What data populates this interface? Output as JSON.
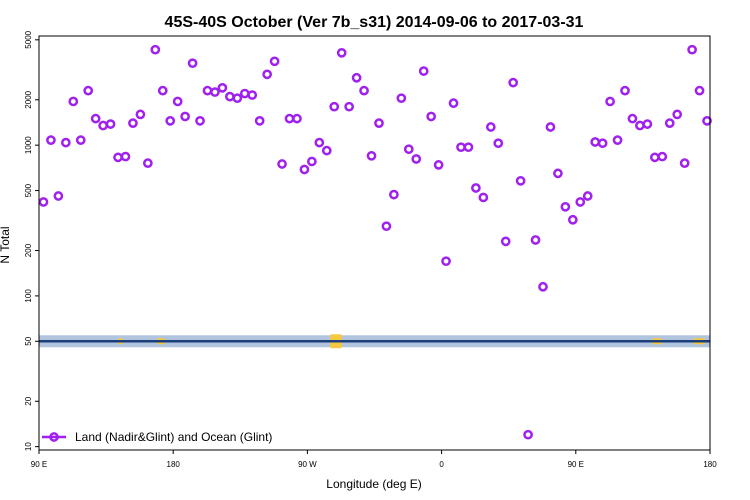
{
  "chart_data": {
    "type": "scatter",
    "title": "45S-40S October (Ver 7b_s31)   2014-09-06 to 2017-03-31",
    "xlabel": "Longitude (deg E)",
    "ylabel": "N Total",
    "x_ticks": [
      {
        "value": 90,
        "label": "90 E"
      },
      {
        "value": 180,
        "label": "180"
      },
      {
        "value": 270,
        "label": "90 W"
      },
      {
        "value": 360,
        "label": "0"
      },
      {
        "value": 450,
        "label": "90 E"
      },
      {
        "value": 540,
        "label": "180"
      }
    ],
    "y_ticks": [
      10,
      20,
      50,
      100,
      200,
      500,
      1000,
      2000,
      5000
    ],
    "y_scale": "log",
    "xlim": [
      90,
      540
    ],
    "ylim": [
      9.5,
      5300
    ],
    "reference_line_y": 50,
    "grid": false,
    "legend_position": "bottom-left",
    "series": [
      {
        "name": "Land (Nadir&Glint) and Ocean (Glint)",
        "color": "#a020f0",
        "marker": "open-circle",
        "x": [
          93,
          98,
          103,
          108,
          113,
          118,
          123,
          128,
          133,
          138,
          143,
          148,
          153,
          158,
          163,
          168,
          173,
          178,
          183,
          188,
          193,
          198,
          203,
          208,
          213,
          218,
          223,
          228,
          233,
          238,
          243,
          248,
          253,
          258,
          263,
          268,
          273,
          278,
          283,
          288,
          293,
          298,
          303,
          308,
          313,
          318,
          323,
          328,
          333,
          338,
          343,
          348,
          353,
          358,
          363,
          368,
          373,
          378,
          383,
          388,
          393,
          398,
          403,
          408,
          413,
          418,
          423,
          428,
          433,
          438,
          443,
          448,
          453,
          458,
          463,
          468,
          473,
          478,
          483,
          488,
          493,
          498,
          503,
          508,
          513,
          518,
          523,
          528,
          533,
          538
        ],
        "y": [
          420,
          1080,
          460,
          1040,
          1950,
          1080,
          2300,
          1500,
          1350,
          1380,
          830,
          840,
          1400,
          1600,
          760,
          4300,
          2300,
          1450,
          1950,
          1550,
          3500,
          1450,
          2300,
          2250,
          2400,
          2100,
          2050,
          2200,
          2150,
          1450,
          2950,
          3600,
          750,
          1500,
          1500,
          690,
          780,
          1040,
          920,
          1800,
          4100,
          1800,
          2800,
          2300,
          850,
          1400,
          290,
          470,
          2050,
          940,
          810,
          3100,
          1550,
          740,
          170,
          1900,
          970,
          970,
          520,
          450,
          1320,
          1030,
          230,
          2600,
          580,
          12,
          235,
          115,
          1320,
          650,
          390,
          320,
          420,
          460,
          1050,
          1030,
          1950,
          1080,
          2300,
          1500,
          1350,
          1380,
          830,
          840,
          1400,
          1600,
          760,
          4300,
          2300,
          1450
        ]
      }
    ]
  }
}
